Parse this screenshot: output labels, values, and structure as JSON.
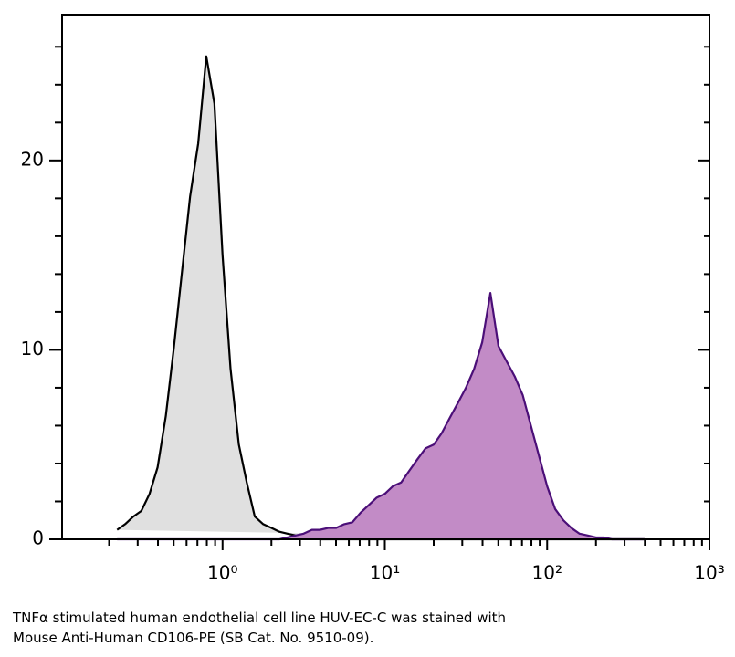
{
  "chart_data": {
    "type": "histogram-line",
    "xscale": "log",
    "xlim": [
      0.1,
      1000
    ],
    "ylim": [
      0,
      27.7
    ],
    "xticks": [
      {
        "value": 1,
        "label": "10⁰"
      },
      {
        "value": 10,
        "label": "10¹"
      },
      {
        "value": 100,
        "label": "10²"
      },
      {
        "value": 1000,
        "label": "10³"
      }
    ],
    "xminorticks": [
      0.2,
      0.3,
      0.4,
      0.5,
      0.6,
      0.7,
      0.8,
      0.9,
      2,
      3,
      4,
      5,
      6,
      7,
      8,
      9,
      20,
      30,
      40,
      50,
      60,
      70,
      80,
      90,
      200,
      300,
      400,
      500,
      600,
      700,
      800,
      900
    ],
    "yticks": [
      0,
      10,
      20
    ],
    "yminorticks": [
      2,
      4,
      6,
      8,
      12,
      14,
      16,
      18,
      22,
      24,
      26
    ],
    "x": [
      0.224,
      0.251,
      0.282,
      0.316,
      0.355,
      0.398,
      0.447,
      0.501,
      0.562,
      0.631,
      0.708,
      0.794,
      0.891,
      1,
      1.12,
      1.26,
      1.41,
      1.58,
      1.78,
      2,
      2.24,
      2.51,
      2.82,
      3.16,
      3.55,
      3.98,
      4.47,
      5.01,
      5.62,
      6.31,
      7.08,
      7.94,
      8.91,
      10,
      11.2,
      12.6,
      14.1,
      15.8,
      17.8,
      20,
      22.4,
      25.1,
      28.2,
      31.6,
      35.5,
      39.8,
      44.7,
      50.1,
      56.2,
      63.1,
      70.8,
      79.4,
      89.1,
      100,
      112,
      126,
      141,
      158,
      178,
      200,
      224,
      251,
      282,
      316,
      355,
      398
    ],
    "series": [
      {
        "color": "#000000",
        "fill": "#e0e0e0",
        "values": [
          0.5,
          0.8,
          1.2,
          1.5,
          2.4,
          3.8,
          6.5,
          10.1,
          14.1,
          18.1,
          20.9,
          25.5,
          23,
          15,
          9,
          5,
          3,
          1.2,
          0.8,
          0.6,
          0.4,
          0.3,
          0.2,
          0.1,
          0.1,
          0,
          0,
          0,
          0,
          0,
          0,
          0,
          0,
          0,
          0,
          0,
          0,
          0,
          0,
          0,
          0,
          0,
          0,
          0,
          0,
          0,
          0,
          0,
          0,
          0,
          0,
          0,
          0,
          0,
          0,
          0,
          0,
          0,
          0,
          0,
          0,
          0,
          0,
          0,
          0,
          0
        ]
      },
      {
        "color": "#4b0f78",
        "fill": "#c28bc6",
        "values": [
          0,
          0,
          0,
          0,
          0,
          0,
          0,
          0,
          0,
          0,
          0,
          0,
          0,
          0,
          0,
          0,
          0,
          0,
          0,
          0,
          0,
          0.1,
          0.2,
          0.3,
          0.5,
          0.5,
          0.6,
          0.6,
          0.8,
          0.9,
          1.4,
          1.8,
          2.2,
          2.4,
          2.8,
          3.0,
          3.6,
          4.2,
          4.8,
          5.0,
          5.6,
          6.4,
          7.2,
          8.0,
          9.0,
          10.4,
          13.0,
          10.2,
          9.4,
          8.6,
          7.6,
          6.0,
          4.4,
          2.8,
          1.6,
          1.0,
          0.6,
          0.3,
          0.2,
          0.1,
          0.1,
          0,
          0,
          0,
          0,
          0
        ]
      }
    ],
    "caption": [
      "TNFα stimulated human endothelial cell line HUV-EC-C was stained with",
      "Mouse Anti-Human CD106-PE (SB Cat. No. 9510-09)."
    ]
  }
}
